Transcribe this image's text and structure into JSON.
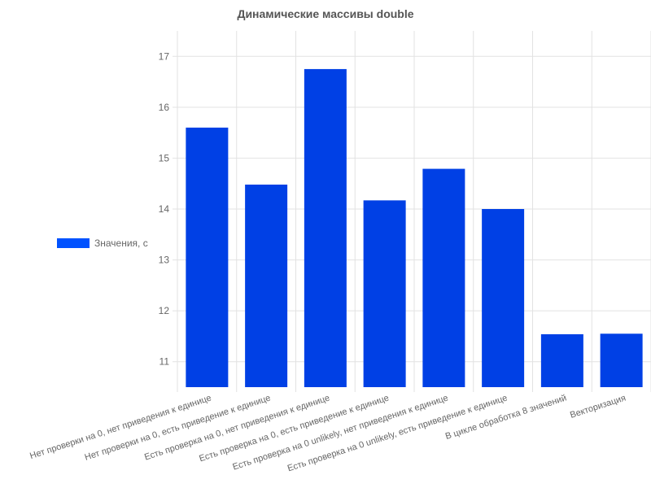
{
  "colors": {
    "bar": "#0040e5",
    "legend": "#0052ff",
    "grid": "#e2e2e2",
    "text": "#666666",
    "title": "#555555"
  },
  "chart_data": {
    "type": "bar",
    "title": "Динамические массивы double",
    "xlabel": "",
    "ylabel": "",
    "categories": [
      "Нет проверки на 0, нет приведения к единице",
      "Нет проверки на 0, есть приведение к единице",
      "Есть проверка на 0, нет приведения к единице",
      "Есть проверка на 0, есть приведение к единице",
      "Есть проверка на 0 unlikely, нет приведения к единице",
      "Есть проверка на 0 unlikely, есть приведение к единице",
      "В цикле обработка 8 значений",
      "Векторизация"
    ],
    "series": [
      {
        "name": "Значения, с",
        "values": [
          15.6,
          14.48,
          16.75,
          14.17,
          14.79,
          14.0,
          11.54,
          11.55
        ]
      }
    ],
    "ylim": [
      10.5,
      17.5
    ],
    "yticks": [
      11,
      12,
      13,
      14,
      15,
      16,
      17
    ],
    "grid": true,
    "legend_position": "left"
  }
}
